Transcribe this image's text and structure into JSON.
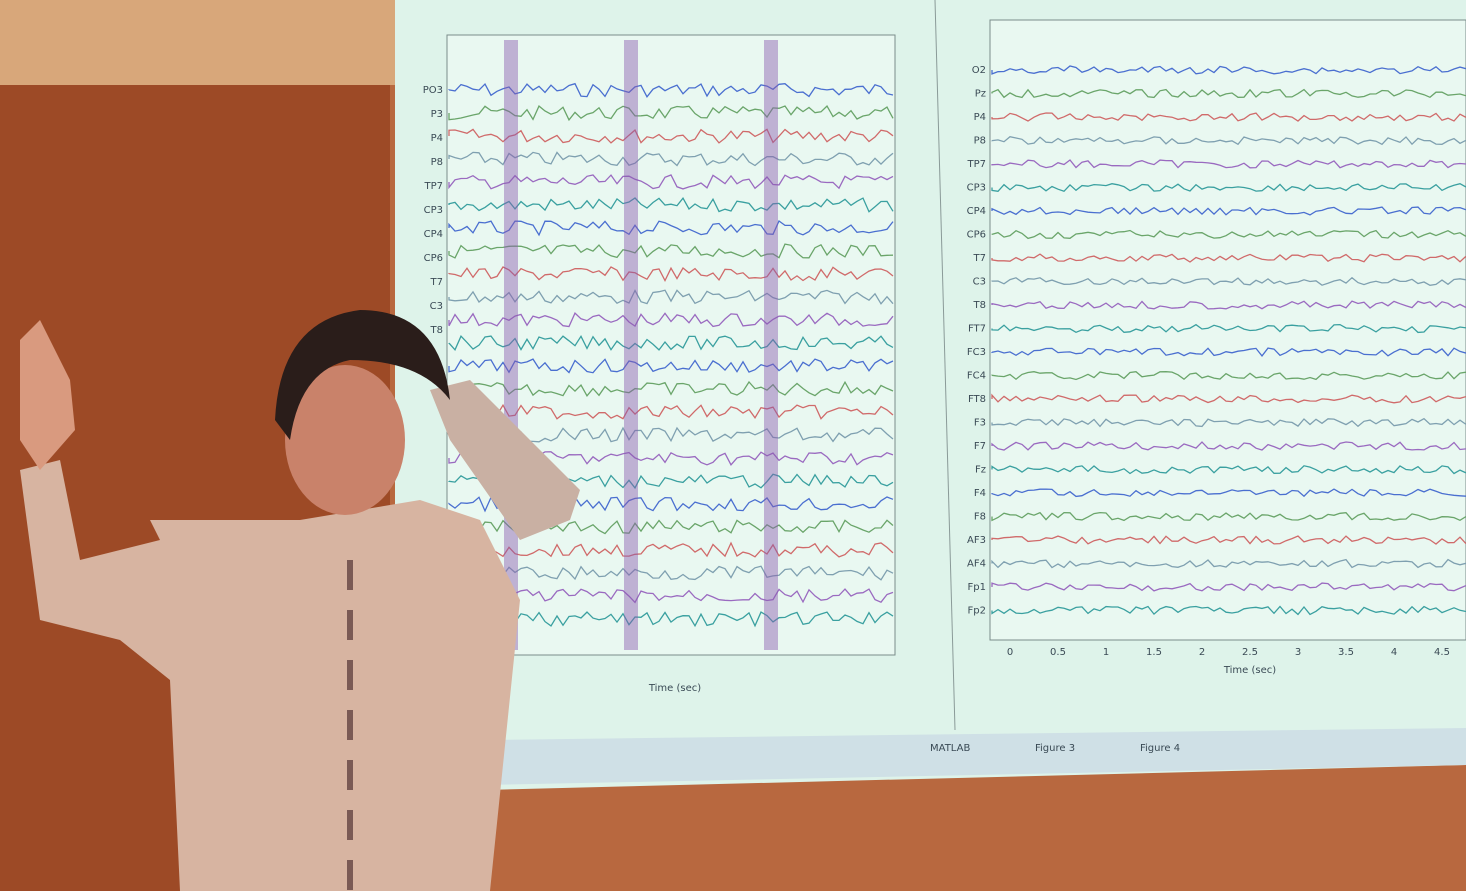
{
  "left_plot": {
    "channels": [
      "PO3",
      "P3",
      "P4",
      "P8",
      "TP7",
      "CP3",
      "CP4",
      "CP6",
      "T7",
      "C3",
      "T8"
    ],
    "x_axis_label": "Time (sec)"
  },
  "right_plot": {
    "channels": [
      "O2",
      "Pz",
      "P4",
      "P8",
      "TP7",
      "CP3",
      "CP4",
      "CP6",
      "T7",
      "C3",
      "T8",
      "FT7",
      "FC3",
      "FC4",
      "FT8",
      "F3",
      "F7",
      "Fz",
      "F4",
      "F8",
      "AF3",
      "AF4",
      "Fp1",
      "Fp2"
    ],
    "x_ticks": [
      "0",
      "0.5",
      "1",
      "1.5",
      "2",
      "2.5",
      "3",
      "3.5",
      "4",
      "4.5"
    ],
    "x_axis_label": "Time (sec)"
  },
  "taskbar": {
    "items": [
      "MATLAB",
      "Figure 3",
      "Figure 4"
    ]
  }
}
